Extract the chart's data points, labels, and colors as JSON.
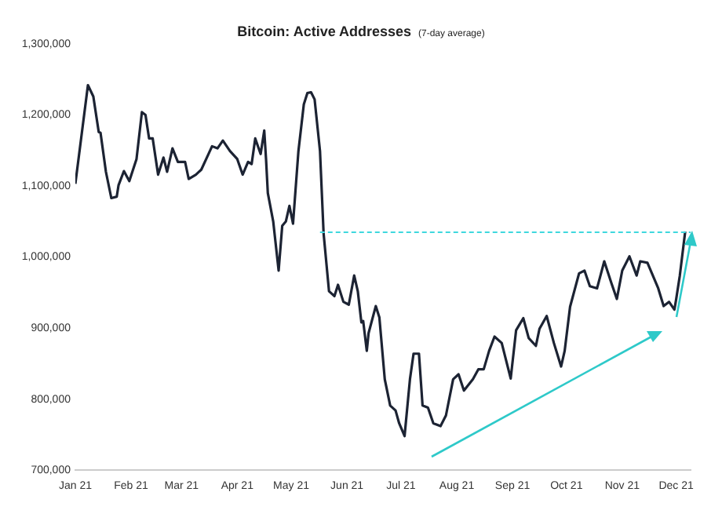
{
  "chart_data": {
    "type": "line",
    "title": "Bitcoin: Active Addresses",
    "subtitle": "(7-day average)",
    "x": [
      "2021-01-01",
      "2021-01-08",
      "2021-01-11",
      "2021-01-14",
      "2021-01-15",
      "2021-01-18",
      "2021-01-21",
      "2021-01-24",
      "2021-01-25",
      "2021-01-28",
      "2021-01-31",
      "2021-02-04",
      "2021-02-07",
      "2021-02-09",
      "2021-02-11",
      "2021-02-13",
      "2021-02-16",
      "2021-02-19",
      "2021-02-21",
      "2021-02-24",
      "2021-02-27",
      "2021-03-03",
      "2021-03-05",
      "2021-03-09",
      "2021-03-12",
      "2021-03-16",
      "2021-03-18",
      "2021-03-21",
      "2021-03-24",
      "2021-03-28",
      "2021-04-01",
      "2021-04-04",
      "2021-04-07",
      "2021-04-09",
      "2021-04-11",
      "2021-04-14",
      "2021-04-16",
      "2021-04-17",
      "2021-04-18",
      "2021-04-21",
      "2021-04-24",
      "2021-04-26",
      "2021-04-28",
      "2021-04-30",
      "2021-05-02",
      "2021-05-05",
      "2021-05-08",
      "2021-05-10",
      "2021-05-12",
      "2021-05-14",
      "2021-05-17",
      "2021-05-19",
      "2021-05-22",
      "2021-05-25",
      "2021-05-27",
      "2021-05-30",
      "2021-06-02",
      "2021-06-05",
      "2021-06-07",
      "2021-06-09",
      "2021-06-10",
      "2021-06-12",
      "2021-06-13",
      "2021-06-17",
      "2021-06-19",
      "2021-06-22",
      "2021-06-25",
      "2021-06-28",
      "2021-06-30",
      "2021-07-03",
      "2021-07-06",
      "2021-07-08",
      "2021-07-11",
      "2021-07-13",
      "2021-07-16",
      "2021-07-19",
      "2021-07-23",
      "2021-07-26",
      "2021-07-30",
      "2021-08-02",
      "2021-08-05",
      "2021-08-10",
      "2021-08-13",
      "2021-08-16",
      "2021-08-19",
      "2021-08-22",
      "2021-08-26",
      "2021-08-31",
      "2021-09-03",
      "2021-09-07",
      "2021-09-10",
      "2021-09-14",
      "2021-09-16",
      "2021-09-20",
      "2021-09-24",
      "2021-09-28",
      "2021-09-30",
      "2021-10-03",
      "2021-10-08",
      "2021-10-11",
      "2021-10-14",
      "2021-10-18",
      "2021-10-22",
      "2021-10-26",
      "2021-10-29",
      "2021-11-01",
      "2021-11-05",
      "2021-11-09",
      "2021-11-11",
      "2021-11-15",
      "2021-11-18",
      "2021-11-21",
      "2021-11-24",
      "2021-11-27",
      "2021-11-30",
      "2021-12-01",
      "2021-12-03",
      "2021-12-06"
    ],
    "series": [
      {
        "color": "#1c2333",
        "values": [
          1103000,
          1242000,
          1226000,
          1176000,
          1175000,
          1120000,
          1083000,
          1085000,
          1101000,
          1121000,
          1107000,
          1138000,
          1204000,
          1200000,
          1167000,
          1167000,
          1116000,
          1140000,
          1120000,
          1153000,
          1134000,
          1134000,
          1110000,
          1116000,
          1123000,
          1145000,
          1156000,
          1153000,
          1164000,
          1149000,
          1138000,
          1116000,
          1134000,
          1131000,
          1167000,
          1145000,
          1178000,
          1138000,
          1090000,
          1050000,
          981000,
          1044000,
          1050000,
          1072000,
          1047000,
          1149000,
          1215000,
          1231000,
          1232000,
          1222000,
          1149000,
          1033000,
          952000,
          945000,
          961000,
          937000,
          933000,
          974000,
          952000,
          908000,
          910000,
          868000,
          893000,
          931000,
          915000,
          828000,
          791000,
          784000,
          766000,
          748000,
          828000,
          864000,
          864000,
          791000,
          788000,
          766000,
          762000,
          777000,
          828000,
          835000,
          812000,
          828000,
          842000,
          842000,
          868000,
          888000,
          879000,
          829000,
          897000,
          914000,
          886000,
          875000,
          899000,
          917000,
          879000,
          846000,
          868000,
          930000,
          977000,
          981000,
          959000,
          956000,
          994000,
          963000,
          941000,
          981000,
          1001000,
          974000,
          994000,
          992000,
          974000,
          956000,
          931000,
          937000,
          926000,
          941000,
          974000,
          1036000
        ]
      }
    ],
    "xlim": [
      "2021-01-01",
      "2021-12-09"
    ],
    "xticks": [
      {
        "value": "2021-01-01",
        "label": "Jan 21"
      },
      {
        "value": "2021-02-01",
        "label": "Feb 21"
      },
      {
        "value": "2021-03-01",
        "label": "Mar 21"
      },
      {
        "value": "2021-04-01",
        "label": "Apr 21"
      },
      {
        "value": "2021-05-01",
        "label": "May 21"
      },
      {
        "value": "2021-06-01",
        "label": "Jun 21"
      },
      {
        "value": "2021-07-01",
        "label": "Jul 21"
      },
      {
        "value": "2021-08-01",
        "label": "Aug 21"
      },
      {
        "value": "2021-09-01",
        "label": "Sep 21"
      },
      {
        "value": "2021-10-01",
        "label": "Oct 21"
      },
      {
        "value": "2021-11-01",
        "label": "Nov 21"
      },
      {
        "value": "2021-12-01",
        "label": "Dec 21"
      }
    ],
    "ylim": [
      700000,
      1300000
    ],
    "yticks": [
      {
        "value": 700000,
        "label": "700,000"
      },
      {
        "value": 800000,
        "label": "800,000"
      },
      {
        "value": 900000,
        "label": "900,000"
      },
      {
        "value": 1000000,
        "label": "1,000,000"
      },
      {
        "value": 1100000,
        "label": "1,100,000"
      },
      {
        "value": 1200000,
        "label": "1,200,000"
      },
      {
        "value": 1300000,
        "label": "1,300,000"
      }
    ],
    "ref_lines": [
      {
        "axis": "y",
        "value": 1035000,
        "color": "#3fd8de",
        "line_style": "dashed"
      }
    ],
    "grid": false,
    "legend": false,
    "marker": "none",
    "line_style": "solid"
  }
}
